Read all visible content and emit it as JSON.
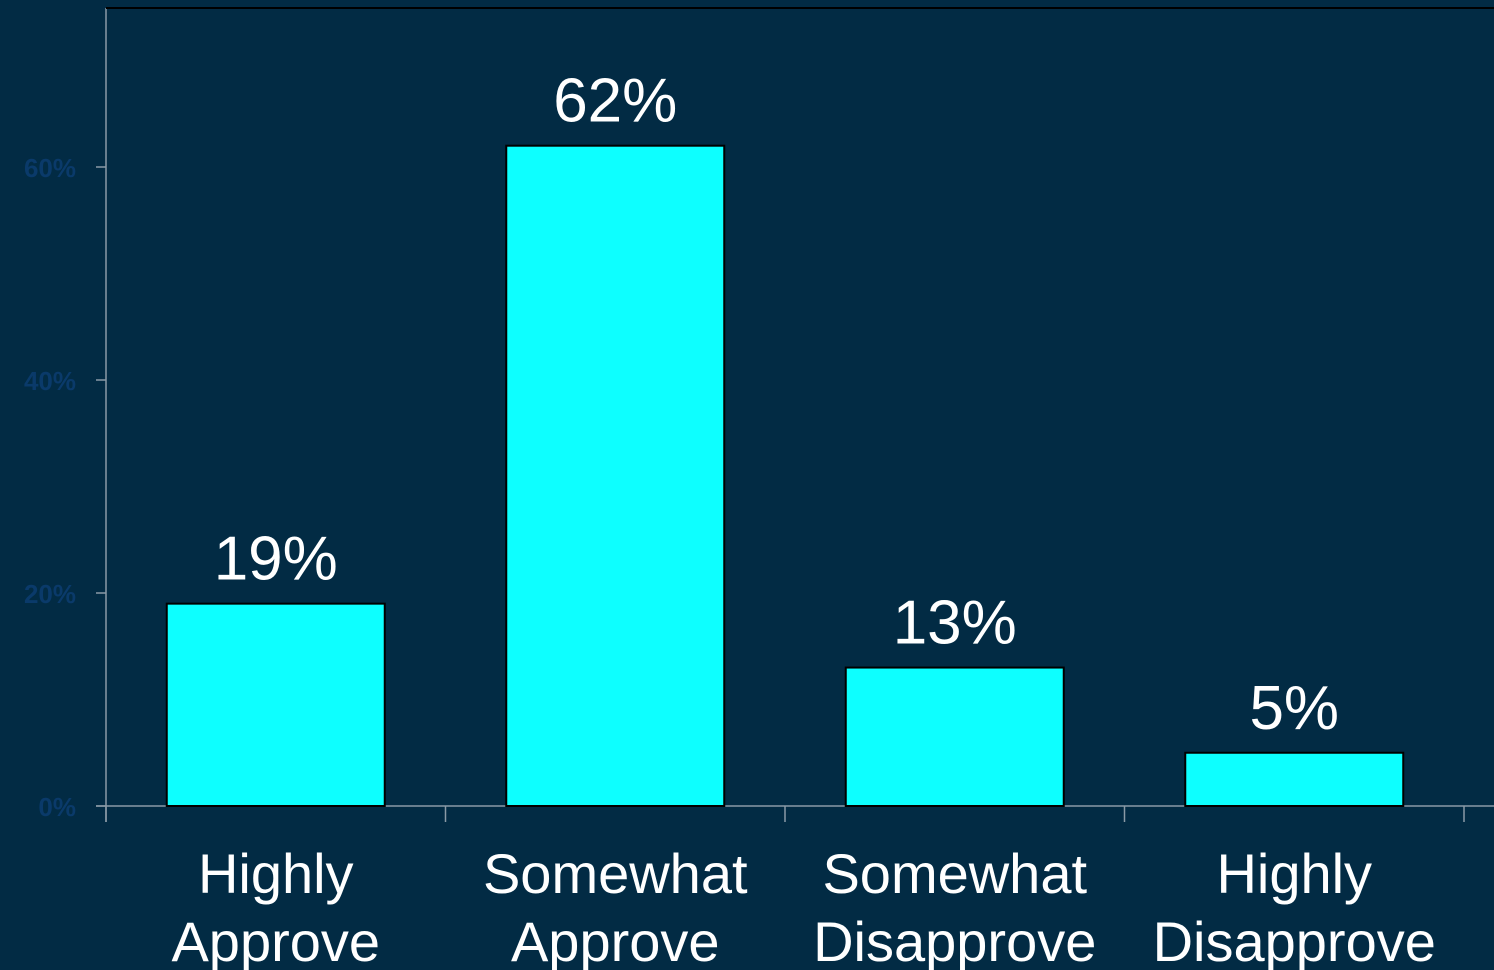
{
  "chart_data": {
    "type": "bar",
    "categories": [
      [
        "Highly",
        "Approve"
      ],
      [
        "Somewhat",
        "Approve"
      ],
      [
        "Somewhat",
        "Disapprove"
      ],
      [
        "Highly",
        "Disapprove"
      ]
    ],
    "values": [
      19,
      62,
      13,
      5
    ],
    "value_labels": [
      "19%",
      "62%",
      "13%",
      "5%"
    ],
    "y_ticks": [
      {
        "value": 0,
        "label": "0%"
      },
      {
        "value": 20,
        "label": "20%"
      },
      {
        "value": 40,
        "label": "40%"
      },
      {
        "value": 60,
        "label": "60%"
      }
    ],
    "ylim": [
      0,
      75
    ],
    "grid": false,
    "legend": "none",
    "colors": {
      "background": "#022b44",
      "bar_fill": "#0dffff",
      "bar_stroke": "#000000",
      "axis": "#8a9aa6",
      "tick_label": "#0a3a6a",
      "text": "#ffffff"
    }
  }
}
